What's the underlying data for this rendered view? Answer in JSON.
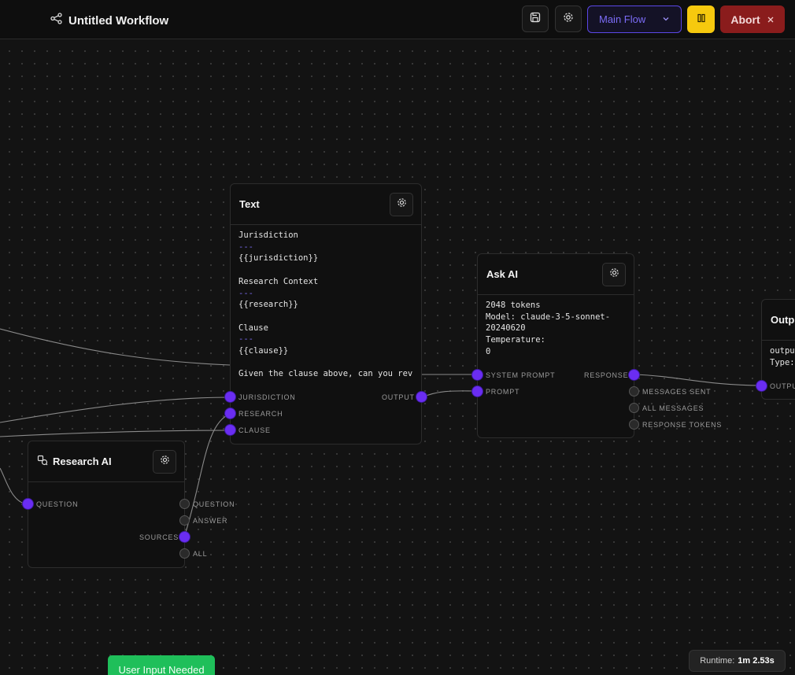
{
  "header": {
    "title": "Untitled Workflow",
    "flow_select": "Main Flow",
    "abort_label": "Abort"
  },
  "nodes": {
    "text": {
      "title": "Text",
      "lines": [
        "Jurisdiction",
        "---",
        "{{jurisdiction}}",
        "",
        "Research Context",
        "---",
        "{{research}}",
        "",
        "Clause",
        "---",
        "{{clause}}",
        "",
        "Given the clause above, can you rev"
      ],
      "inputs": [
        "JURISDICTION",
        "RESEARCH",
        "CLAUSE"
      ],
      "output": "OUTPUT"
    },
    "ask_ai": {
      "title": "Ask AI",
      "lines": [
        "2048 tokens",
        "Model: claude-3-5-sonnet-",
        "20240620",
        "Temperature:",
        "0"
      ],
      "inputs": [
        "SYSTEM PROMPT",
        "PROMPT"
      ],
      "outputs": [
        "RESPONSE",
        "MESSAGES SENT",
        "ALL MESSAGES",
        "RESPONSE TOKENS"
      ]
    },
    "research_ai": {
      "title": "Research AI",
      "inputs": [
        "QUESTION"
      ],
      "outputs": [
        "QUESTION",
        "ANSWER",
        "SOURCES",
        "ALL"
      ]
    },
    "output": {
      "title": "Outpu",
      "lines": [
        "outpu",
        "Type:"
      ],
      "input": "OUTPU"
    }
  },
  "status": {
    "user_input": "User Input Needed",
    "runtime_label": "Runtime:",
    "runtime_value": "1m 2.53s"
  },
  "colors": {
    "accent": "#6a2df2",
    "pause": "#f6c90e",
    "abort": "#8a1c1c",
    "user_input": "#1fbf5a"
  }
}
